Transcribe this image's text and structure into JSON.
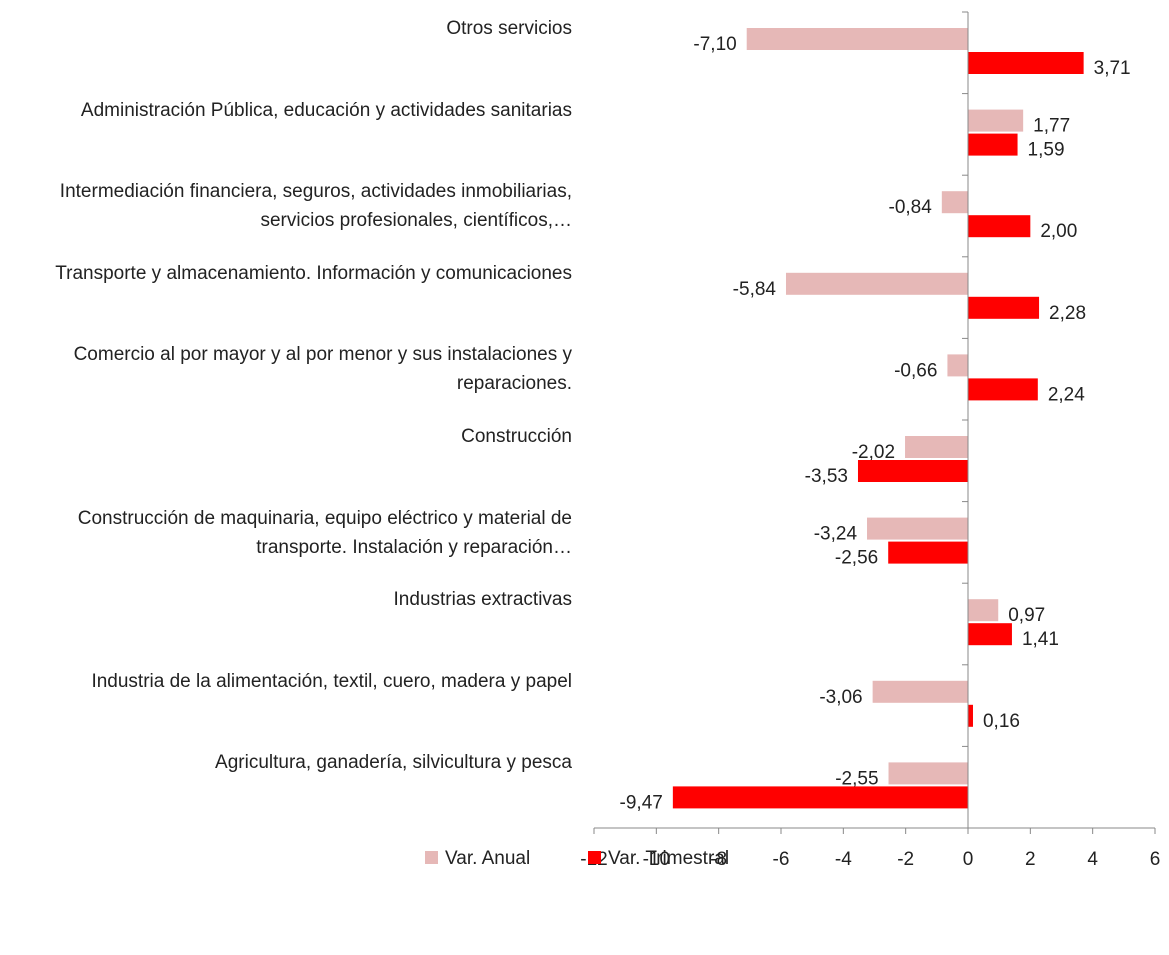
{
  "chart_data": {
    "type": "hbar",
    "categories": [
      "Otros servicios",
      "Administración Pública, educación y actividades sanitarias",
      "Intermediación financiera, seguros, actividades inmobiliarias, servicios profesionales, científicos,…",
      "Transporte y almacenamiento. Información y comunicaciones",
      "Comercio al por mayor y al por menor y sus instalaciones y reparaciones.",
      "Construcción",
      "Construcción de maquinaria, equipo eléctrico y material de transporte. Instalación y reparación…",
      "Industrias extractivas",
      "Industria de la alimentación, textil, cuero, madera y papel",
      "Agricultura, ganadería, silvicultura y pesca"
    ],
    "series": [
      {
        "name": "Var. Anual",
        "color": "#e6b8b7",
        "values": [
          -7.1,
          1.77,
          -0.84,
          -5.84,
          -0.66,
          -2.02,
          -3.24,
          0.97,
          -3.06,
          -2.55
        ],
        "value_labels": [
          "-7,10",
          "1,77",
          "-0,84",
          "-5,84",
          "-0,66",
          "-2,02",
          "-3,24",
          "0,97",
          "-3,06",
          "-2,55"
        ]
      },
      {
        "name": "Var. Trimestral",
        "color": "#ff0000",
        "values": [
          3.71,
          1.59,
          2.0,
          2.28,
          2.24,
          -3.53,
          -2.56,
          1.41,
          0.16,
          -9.47
        ],
        "value_labels": [
          "3,71",
          "1,59",
          "2,00",
          "2,28",
          "2,24",
          "-3,53",
          "-2,56",
          "1,41",
          "0,16",
          "-9,47"
        ]
      }
    ],
    "xlim": [
      -12,
      6
    ],
    "xticks": [
      -12,
      -10,
      -8,
      -6,
      -4,
      -2,
      0,
      2,
      4,
      6
    ],
    "legend": "bottom"
  }
}
